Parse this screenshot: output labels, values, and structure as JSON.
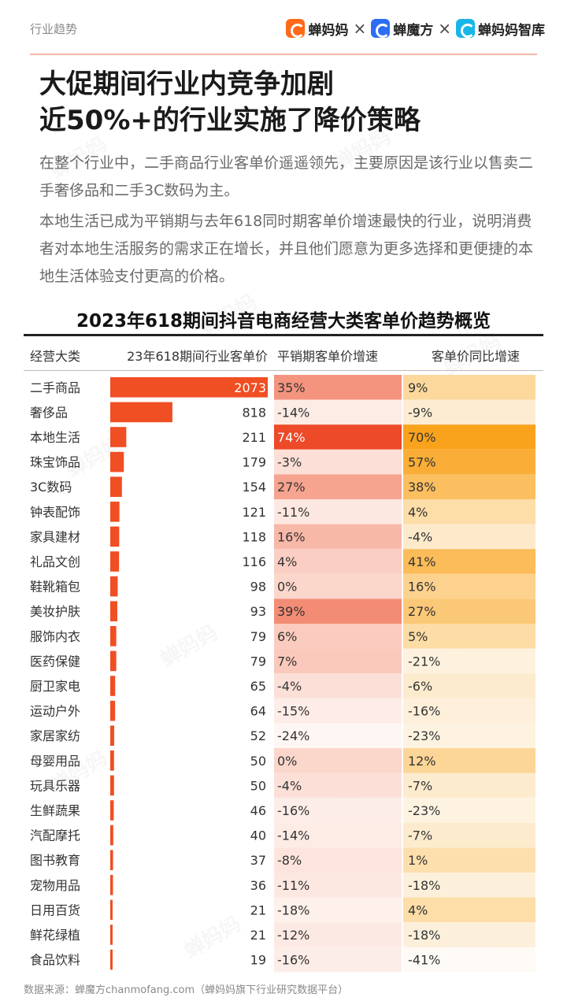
{
  "header": {
    "section_tag": "行业趋势",
    "brands": [
      {
        "name": "蝉妈妈",
        "icon": "chanmama-logo-icon",
        "color": "#ff6a1a"
      },
      {
        "name": "蝉魔方",
        "icon": "chanmofang-logo-icon",
        "color": "#2d6df6"
      },
      {
        "name": "蝉妈妈智库",
        "icon": "chanmama-zhiku-logo-icon",
        "color": "#17b6e8"
      }
    ],
    "separator": "×"
  },
  "headline": {
    "line1": "大促期间行业内竞争加剧",
    "line2": "近50%+的行业实施了降价策略"
  },
  "paragraphs": [
    "在整个行业中，二手商品行业客单价遥遥领先，主要原因是该行业以售卖二手奢侈品和二手3C数码为主。",
    "本地生活已成为平销期与去年618同时期客单价增速最快的行业，说明消费者对本地生活服务的需求正在增长，并且他们愿意为更多选择和更便捷的本地生活体验支付更高的价格。"
  ],
  "footnote": "数据来源：蝉魔方chanmofang.com（蝉妈妈旗下行业研究数据平台）",
  "watermark_text": "蝉妈妈",
  "colors": {
    "bar": "#f04e23",
    "growth_positive": "#ec4a28",
    "growth_negative_max": "#fde9e3",
    "yoy_positive": "#f9a31c",
    "yoy_negative": "#fdf0d8",
    "accent_rule": "#f0b9a4"
  },
  "chart_data": {
    "type": "table",
    "title": "2023年618期间抖音电商经营大类客单价趋势概览",
    "columns": [
      "经营大类",
      "23年618期间行业客单价",
      "平销期客单价增速",
      "客单价同比增速"
    ],
    "categories": [
      "二手商品",
      "奢侈品",
      "本地生活",
      "珠宝饰品",
      "3C数码",
      "钟表配饰",
      "家具建材",
      "礼品文创",
      "鞋靴箱包",
      "美妆护肤",
      "服饰内衣",
      "医药保健",
      "厨卫家电",
      "运动户外",
      "家居家纺",
      "母婴用品",
      "玩具乐器",
      "生鲜蔬果",
      "汽配摩托",
      "图书教育",
      "宠物用品",
      "日用百货",
      "鲜花绿植",
      "食品饮料"
    ],
    "series": [
      {
        "name": "23年618期间行业客单价",
        "values": [
          2073,
          818,
          211,
          179,
          154,
          121,
          118,
          116,
          98,
          93,
          79,
          79,
          65,
          64,
          52,
          50,
          50,
          46,
          40,
          37,
          36,
          21,
          21,
          19
        ]
      },
      {
        "name": "平销期客单价增速",
        "values": [
          "35%",
          "-14%",
          "74%",
          "-3%",
          "27%",
          "-11%",
          "16%",
          "4%",
          "0%",
          "39%",
          "6%",
          "7%",
          "-4%",
          "-15%",
          "-24%",
          "0%",
          "-4%",
          "-16%",
          "-14%",
          "-8%",
          "-11%",
          "-18%",
          "-12%",
          "-16%"
        ]
      },
      {
        "name": "客单价同比增速",
        "values": [
          "9%",
          "-9%",
          "70%",
          "57%",
          "38%",
          "4%",
          "-4%",
          "41%",
          "16%",
          "27%",
          "5%",
          "-21%",
          "-6%",
          "-16%",
          "-23%",
          "12%",
          "-7%",
          "-23%",
          "-7%",
          "1%",
          "-18%",
          "4%",
          "-18%",
          "-41%"
        ]
      }
    ]
  }
}
